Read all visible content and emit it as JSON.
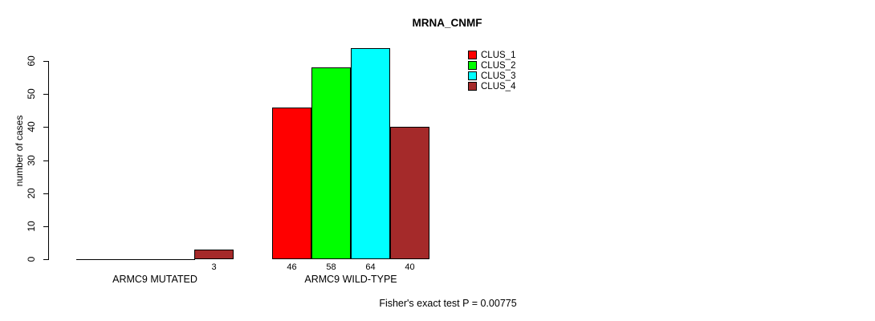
{
  "chart_data": {
    "type": "bar",
    "title": "MRNA_CNMF",
    "ylabel": "number of cases",
    "xlabel": "",
    "categories": [
      "ARMC9 MUTATED",
      "ARMC9 WILD-TYPE"
    ],
    "series": [
      {
        "name": "CLUS_1",
        "color": "#ff0000",
        "values": [
          0,
          46
        ]
      },
      {
        "name": "CLUS_2",
        "color": "#00ff00",
        "values": [
          0,
          58
        ]
      },
      {
        "name": "CLUS_3",
        "color": "#00ffff",
        "values": [
          0,
          64
        ]
      },
      {
        "name": "CLUS_4",
        "color": "#a52a2a",
        "values": [
          3,
          40
        ]
      }
    ],
    "bar_value_labels": {
      "shown_for_positive_values": true,
      "hidden_for_zero": true
    },
    "ylim": [
      0,
      60
    ],
    "yticks": [
      0,
      10,
      20,
      30,
      40,
      50,
      60
    ],
    "legend": {
      "position": "topright",
      "entries": [
        "CLUS_1",
        "CLUS_2",
        "CLUS_3",
        "CLUS_4"
      ]
    },
    "annotation": "Fisher's exact test P = 0.00775",
    "grid": false,
    "axis_color": "#000000",
    "bar_border_color": "#000000",
    "background_color": "#ffffff"
  }
}
